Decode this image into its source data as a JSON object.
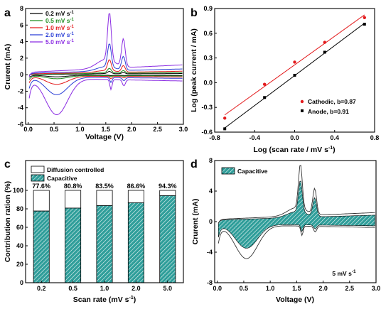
{
  "panels": {
    "a": {
      "label": "a"
    },
    "b": {
      "label": "b"
    },
    "c": {
      "label": "c"
    },
    "d": {
      "label": "d"
    }
  },
  "chart_data": [
    {
      "panel": "a",
      "type": "line",
      "xlabel": "Voltage (V)",
      "ylabel": "Crurent (mA)",
      "xlim": [
        -0.05,
        3.0
      ],
      "ylim": [
        -6,
        8
      ],
      "xticks": [
        "0.0",
        "0.5",
        "1.0",
        "1.5",
        "2.0",
        "2.5",
        "3.0"
      ],
      "yticks": [
        "-6",
        "-4",
        "-2",
        "0",
        "2",
        "4",
        "6",
        "8"
      ],
      "legend_position": "top-left",
      "series": [
        {
          "name": "0.2 mV s",
          "color": "#000000",
          "peak": 0.28,
          "env": 0.1
        },
        {
          "name": "0.5 mV s",
          "color": "#1f8c1f",
          "peak": 0.55,
          "env": 0.18
        },
        {
          "name": "1.0 mV s",
          "color": "#e31a1c",
          "peak": 1.4,
          "env": 0.3
        },
        {
          "name": "2.0 mV s",
          "color": "#2b3fd6",
          "peak": 3.0,
          "env": 0.5
        },
        {
          "name": "5.0 mV s",
          "color": "#8a2be2",
          "peak": 6.1,
          "env": 0.85
        }
      ],
      "legend_unit_superscript": "-1"
    },
    {
      "panel": "b",
      "type": "scatter",
      "xlabel": "Log (scan rate / mV s",
      "xlabel_sup": "-1",
      "xlabel_close": ")",
      "ylabel": "Log (peak current / mA)",
      "xlim": [
        -0.8,
        0.8
      ],
      "ylim": [
        -0.6,
        0.9
      ],
      "xticks": [
        "-0.8",
        "-0.4",
        "0.0",
        "0.4",
        "0.8"
      ],
      "yticks": [
        "-0.6",
        "-0.3",
        "0.0",
        "0.3",
        "0.6",
        "0.9"
      ],
      "legend_position": "bottom-right",
      "series": [
        {
          "name": "Cathodic, b=0.87",
          "color": "#e31a1c",
          "x": [
            -0.699,
            -0.301,
            0.0,
            0.301,
            0.699
          ],
          "y": [
            -0.43,
            -0.02,
            0.25,
            0.49,
            0.79
          ]
        },
        {
          "name": "Anode, b=0.91",
          "color": "#000000",
          "x": [
            -0.699,
            -0.301,
            0.0,
            0.301,
            0.699
          ],
          "y": [
            -0.56,
            -0.18,
            0.09,
            0.37,
            0.71
          ]
        }
      ]
    },
    {
      "panel": "c",
      "type": "bar",
      "xlabel": "Scan rate (mV s",
      "xlabel_sup": "-1",
      "xlabel_close": ")",
      "ylabel": "Contribution ration (%)",
      "ylim": [
        0,
        100
      ],
      "categories": [
        "0.2",
        "0.5",
        "1.0",
        "2.0",
        "5.0"
      ],
      "yticks": [
        "0",
        "20",
        "40",
        "60",
        "80",
        "100"
      ],
      "legend_position": "top",
      "series": [
        {
          "name": "Capacitive",
          "color": "#2f9e9a",
          "values": [
            77.6,
            80.8,
            83.5,
            86.6,
            94.3
          ]
        },
        {
          "name": "Diffusion controlled",
          "color": "#ffffff",
          "values": [
            22.4,
            19.2,
            16.5,
            13.4,
            5.7
          ]
        }
      ],
      "data_labels": [
        "77.6%",
        "80.8%",
        "83.5%",
        "86.6%",
        "94.3%"
      ]
    },
    {
      "panel": "d",
      "type": "area",
      "xlabel": "Voltage (V)",
      "ylabel": "Crurent (mA)",
      "xlim": [
        -0.05,
        3.0
      ],
      "ylim": [
        -8,
        8
      ],
      "xticks": [
        "0.0",
        "0.5",
        "1.0",
        "1.5",
        "2.0",
        "2.5",
        "3.0"
      ],
      "yticks": [
        "-8",
        "-4",
        "0",
        "4",
        "8"
      ],
      "legend_position": "top-left",
      "series": [
        {
          "name": "Capacitive",
          "color": "#2f9e9a"
        }
      ],
      "annotation": "5 mV s",
      "annotation_sup": "-1"
    }
  ]
}
